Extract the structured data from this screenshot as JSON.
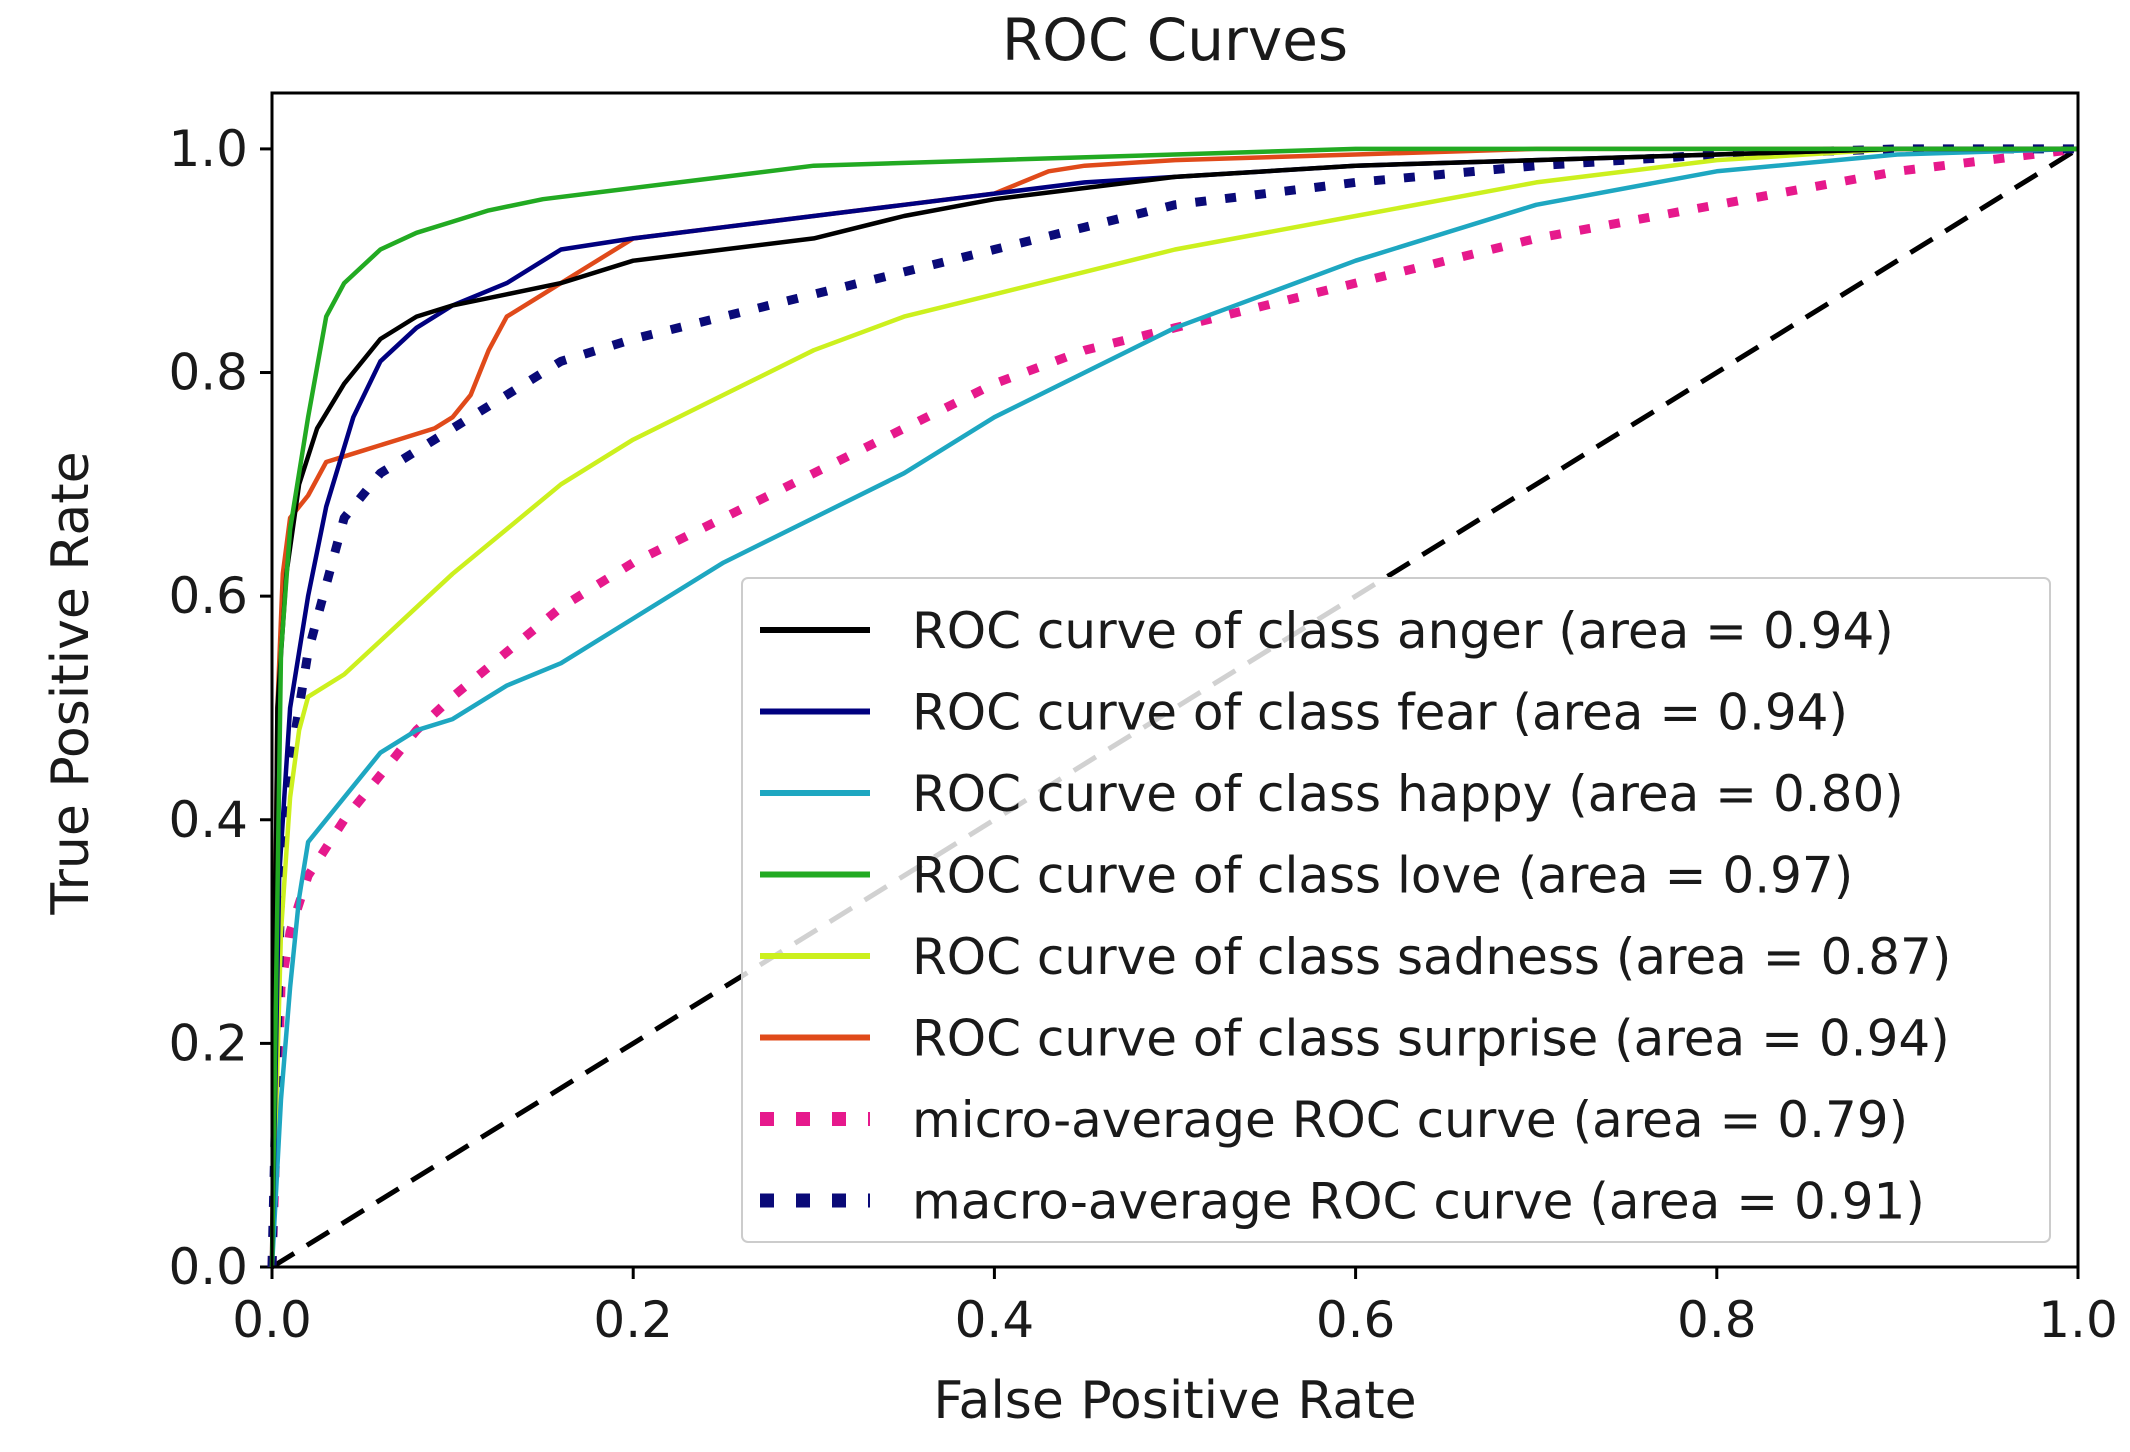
{
  "chart_data": {
    "type": "line",
    "title": "ROC Curves",
    "xlabel": "False Positive Rate",
    "ylabel": "True Positive Rate",
    "xlim": [
      0.0,
      1.0
    ],
    "ylim": [
      0.0,
      1.05
    ],
    "xticks": [
      "0.0",
      "0.2",
      "0.4",
      "0.6",
      "0.8",
      "1.0"
    ],
    "yticks": [
      "0.0",
      "0.2",
      "0.4",
      "0.6",
      "0.8",
      "1.0"
    ],
    "xtick_values": [
      0.0,
      0.2,
      0.4,
      0.6,
      0.8,
      1.0
    ],
    "ytick_values": [
      0.0,
      0.2,
      0.4,
      0.6,
      0.8,
      1.0
    ],
    "grid": false,
    "legend_position": "lower-right",
    "chance_line": {
      "x": [
        0,
        1
      ],
      "y": [
        0,
        1
      ],
      "color": "#000000",
      "style": "dashed"
    },
    "series": [
      {
        "name": "ROC curve of class anger (area = 0.94)",
        "color": "#000000",
        "style": "solid",
        "x": [
          0,
          0.003,
          0.008,
          0.015,
          0.025,
          0.04,
          0.06,
          0.08,
          0.1,
          0.13,
          0.16,
          0.2,
          0.25,
          0.3,
          0.35,
          0.4,
          0.45,
          0.5,
          0.6,
          0.7,
          0.8,
          0.9,
          1.0
        ],
        "y": [
          0,
          0.5,
          0.62,
          0.7,
          0.75,
          0.79,
          0.83,
          0.85,
          0.86,
          0.87,
          0.88,
          0.9,
          0.91,
          0.92,
          0.94,
          0.955,
          0.965,
          0.975,
          0.985,
          0.99,
          0.995,
          1.0,
          1.0
        ]
      },
      {
        "name": "ROC curve of class fear (area = 0.94)",
        "color": "#00007f",
        "style": "solid",
        "x": [
          0,
          0.004,
          0.01,
          0.02,
          0.03,
          0.045,
          0.06,
          0.08,
          0.1,
          0.13,
          0.16,
          0.2,
          0.25,
          0.3,
          0.35,
          0.4,
          0.45,
          0.5,
          0.6,
          0.7,
          0.8,
          0.9,
          1.0
        ],
        "y": [
          0,
          0.35,
          0.5,
          0.6,
          0.68,
          0.76,
          0.81,
          0.84,
          0.86,
          0.88,
          0.91,
          0.92,
          0.93,
          0.94,
          0.95,
          0.96,
          0.97,
          0.975,
          0.985,
          0.99,
          0.995,
          1.0,
          1.0
        ]
      },
      {
        "name": "ROC curve of class happy (area = 0.80)",
        "color": "#1ea7c1",
        "style": "solid",
        "x": [
          0,
          0.005,
          0.01,
          0.015,
          0.02,
          0.04,
          0.06,
          0.08,
          0.1,
          0.13,
          0.16,
          0.2,
          0.25,
          0.3,
          0.35,
          0.4,
          0.45,
          0.5,
          0.55,
          0.6,
          0.7,
          0.8,
          0.9,
          1.0
        ],
        "y": [
          0,
          0.15,
          0.25,
          0.33,
          0.38,
          0.42,
          0.46,
          0.48,
          0.49,
          0.52,
          0.54,
          0.58,
          0.63,
          0.67,
          0.71,
          0.76,
          0.8,
          0.84,
          0.87,
          0.9,
          0.95,
          0.98,
          0.995,
          1.0
        ]
      },
      {
        "name": "ROC curve of class love (area = 0.97)",
        "color": "#22aa22",
        "style": "solid",
        "x": [
          0,
          0.005,
          0.01,
          0.02,
          0.03,
          0.04,
          0.06,
          0.08,
          0.1,
          0.12,
          0.15,
          0.2,
          0.25,
          0.3,
          0.4,
          0.5,
          0.6,
          0.7,
          0.8,
          0.9,
          1.0
        ],
        "y": [
          0,
          0.55,
          0.66,
          0.76,
          0.85,
          0.88,
          0.91,
          0.925,
          0.935,
          0.945,
          0.955,
          0.965,
          0.975,
          0.985,
          0.99,
          0.995,
          1.0,
          1.0,
          1.0,
          1.0,
          1.0
        ]
      },
      {
        "name": "ROC curve of class sadness (area = 0.87)",
        "color": "#ccf01e",
        "style": "solid",
        "x": [
          0,
          0.005,
          0.01,
          0.015,
          0.02,
          0.04,
          0.06,
          0.08,
          0.1,
          0.13,
          0.16,
          0.2,
          0.25,
          0.3,
          0.35,
          0.4,
          0.45,
          0.5,
          0.6,
          0.7,
          0.8,
          0.9,
          1.0
        ],
        "y": [
          0,
          0.3,
          0.42,
          0.48,
          0.51,
          0.53,
          0.56,
          0.59,
          0.62,
          0.66,
          0.7,
          0.74,
          0.78,
          0.82,
          0.85,
          0.87,
          0.89,
          0.91,
          0.94,
          0.97,
          0.99,
          1.0,
          1.0
        ]
      },
      {
        "name": "ROC curve of class surprise (area = 0.94)",
        "color": "#e04a1a",
        "style": "solid",
        "x": [
          0,
          0.003,
          0.006,
          0.01,
          0.02,
          0.03,
          0.05,
          0.07,
          0.09,
          0.1,
          0.11,
          0.115,
          0.12,
          0.13,
          0.15,
          0.17,
          0.2,
          0.25,
          0.3,
          0.35,
          0.4,
          0.43,
          0.45,
          0.5,
          0.6,
          0.7,
          0.8,
          0.9,
          1.0
        ],
        "y": [
          0,
          0.5,
          0.62,
          0.67,
          0.69,
          0.72,
          0.73,
          0.74,
          0.75,
          0.76,
          0.78,
          0.8,
          0.82,
          0.85,
          0.87,
          0.89,
          0.92,
          0.93,
          0.94,
          0.95,
          0.96,
          0.98,
          0.985,
          0.99,
          0.995,
          1.0,
          1.0,
          1.0,
          1.0
        ]
      },
      {
        "name": "micro-average ROC curve (area = 0.79)",
        "color": "#e6198c",
        "style": "dotted",
        "x": [
          0,
          0.005,
          0.01,
          0.02,
          0.04,
          0.06,
          0.08,
          0.1,
          0.13,
          0.16,
          0.2,
          0.25,
          0.3,
          0.35,
          0.4,
          0.45,
          0.5,
          0.6,
          0.7,
          0.8,
          0.9,
          1.0
        ],
        "y": [
          0,
          0.25,
          0.3,
          0.35,
          0.4,
          0.44,
          0.48,
          0.51,
          0.55,
          0.59,
          0.63,
          0.67,
          0.71,
          0.75,
          0.79,
          0.82,
          0.84,
          0.88,
          0.92,
          0.95,
          0.98,
          1.0
        ]
      },
      {
        "name": "macro-average ROC curve (area = 0.91)",
        "color": "#0a0a78",
        "style": "dotted",
        "x": [
          0,
          0.005,
          0.01,
          0.02,
          0.04,
          0.06,
          0.08,
          0.1,
          0.13,
          0.16,
          0.2,
          0.25,
          0.3,
          0.35,
          0.4,
          0.45,
          0.5,
          0.6,
          0.7,
          0.8,
          0.9,
          1.0
        ],
        "y": [
          0,
          0.35,
          0.45,
          0.55,
          0.67,
          0.71,
          0.73,
          0.75,
          0.78,
          0.81,
          0.83,
          0.85,
          0.87,
          0.89,
          0.91,
          0.93,
          0.95,
          0.97,
          0.985,
          0.995,
          1.0,
          1.0
        ]
      }
    ]
  }
}
